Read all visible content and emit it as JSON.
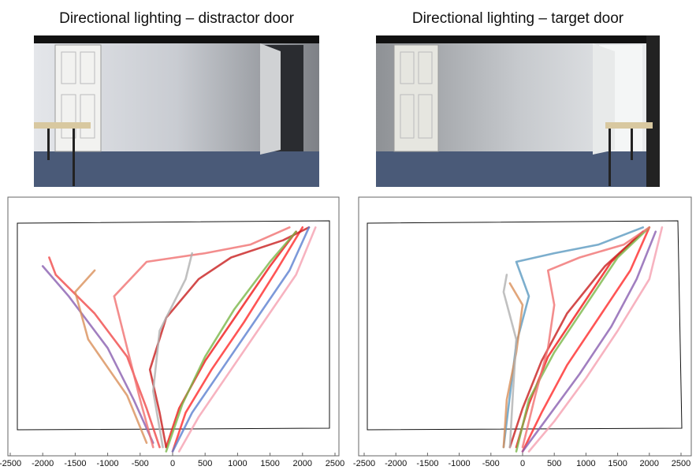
{
  "chart_data": [
    {
      "type": "line",
      "title": "Directional lighting – distractor door",
      "xlim": [
        -2500,
        2500
      ],
      "ylim": [
        -500,
        5500
      ],
      "xticks": [
        -2500,
        -2000,
        -1500,
        -1000,
        -500,
        0,
        500,
        1000,
        1500,
        2000,
        2500
      ],
      "series": [
        {
          "color": "#ff2a2a",
          "x": [
            0,
            200,
            600,
            1100,
            1600,
            2000
          ],
          "values": [
            -400,
            500,
            1500,
            2600,
            3800,
            4800
          ]
        },
        {
          "color": "#f01818",
          "x": [
            -100,
            100,
            500,
            1000,
            1500,
            1900
          ],
          "values": [
            -300,
            600,
            1700,
            2800,
            3900,
            4700
          ]
        },
        {
          "color": "#f04848",
          "x": [
            -200,
            -400,
            -700,
            -1200,
            -1800,
            -1900
          ],
          "values": [
            -300,
            600,
            1800,
            2800,
            3700,
            4100
          ]
        },
        {
          "color": "#8a5fb0",
          "x": [
            -300,
            -600,
            -1000,
            -1600,
            -2000
          ],
          "values": [
            -200,
            800,
            2000,
            3200,
            3900
          ]
        },
        {
          "color": "#f07070",
          "x": [
            -300,
            -500,
            -700,
            -900,
            -400,
            500,
            1200,
            1800
          ],
          "values": [
            -300,
            800,
            2000,
            3200,
            4000,
            4200,
            4400,
            4800
          ]
        },
        {
          "color": "#d9905a",
          "x": [
            -400,
            -700,
            -1300,
            -1500,
            -1200
          ],
          "values": [
            -200,
            900,
            2200,
            3300,
            3800
          ]
        },
        {
          "color": "#c81e1e",
          "x": [
            -100,
            -200,
            -350,
            -100,
            400,
            900,
            1700,
            2100
          ],
          "values": [
            -300,
            500,
            1500,
            2700,
            3600,
            4100,
            4500,
            4800
          ]
        },
        {
          "color": "#5b7fd0",
          "x": [
            0,
            300,
            800,
            1300,
            1800,
            2100
          ],
          "values": [
            -400,
            500,
            1600,
            2700,
            3800,
            4800
          ]
        },
        {
          "color": "#7ab648",
          "x": [
            -100,
            150,
            500,
            950,
            1500,
            1900
          ],
          "values": [
            -400,
            700,
            1800,
            2900,
            4000,
            4700
          ]
        },
        {
          "color": "#f5a0b0",
          "x": [
            100,
            400,
            900,
            1400,
            1900,
            2200
          ],
          "values": [
            -400,
            400,
            1500,
            2600,
            3700,
            4800
          ]
        },
        {
          "color": "#b0b0b0",
          "x": [
            -150,
            -300,
            -200,
            200,
            300
          ],
          "values": [
            -300,
            1000,
            2400,
            3600,
            4200
          ]
        }
      ]
    },
    {
      "type": "line",
      "title": "Directional lighting – target door",
      "xlim": [
        -2500,
        2500
      ],
      "ylim": [
        -500,
        5500
      ],
      "xticks": [
        -2500,
        -2000,
        -1500,
        -1000,
        -500,
        0,
        500,
        1000,
        1500,
        2000,
        2500
      ],
      "series": [
        {
          "color": "#ff2a2a",
          "x": [
            0,
            300,
            700,
            1200,
            1700,
            2000
          ],
          "values": [
            -400,
            500,
            1600,
            2700,
            3800,
            4800
          ]
        },
        {
          "color": "#f01818",
          "x": [
            -100,
            100,
            400,
            900,
            1400,
            1900
          ],
          "values": [
            -300,
            700,
            1800,
            2900,
            4000,
            4700
          ]
        },
        {
          "color": "#5b9ac0",
          "x": [
            -300,
            -200,
            -100,
            100,
            -100,
            500,
            1200,
            1900
          ],
          "values": [
            -300,
            900,
            2100,
            3200,
            4000,
            4200,
            4400,
            4800
          ]
        },
        {
          "color": "#c81e1e",
          "x": [
            -200,
            0,
            300,
            700,
            1300,
            1900
          ],
          "values": [
            -300,
            600,
            1700,
            2800,
            3900,
            4700
          ]
        },
        {
          "color": "#d9905a",
          "x": [
            -300,
            -250,
            -100,
            0,
            -200
          ],
          "values": [
            -300,
            800,
            1900,
            3000,
            3500
          ]
        },
        {
          "color": "#8a5fb0",
          "x": [
            0,
            400,
            900,
            1400,
            1800,
            2100
          ],
          "values": [
            -400,
            400,
            1400,
            2500,
            3600,
            4700
          ]
        },
        {
          "color": "#7ab648",
          "x": [
            -100,
            100,
            500,
            1000,
            1500,
            2000
          ],
          "values": [
            -400,
            800,
            1900,
            3000,
            4100,
            4800
          ]
        },
        {
          "color": "#f5a0b0",
          "x": [
            100,
            500,
            1000,
            1500,
            2000,
            2200
          ],
          "values": [
            -400,
            300,
            1300,
            2400,
            3600,
            4800
          ]
        },
        {
          "color": "#b0b0b0",
          "x": [
            -200,
            -150,
            -100,
            -300,
            -250
          ],
          "values": [
            -300,
            1000,
            2200,
            3300,
            3700
          ]
        },
        {
          "color": "#f07070",
          "x": [
            0,
            200,
            400,
            500,
            400,
            900,
            1600,
            2000
          ],
          "values": [
            -300,
            900,
            2000,
            3000,
            3800,
            4100,
            4400,
            4800
          ]
        }
      ]
    }
  ]
}
